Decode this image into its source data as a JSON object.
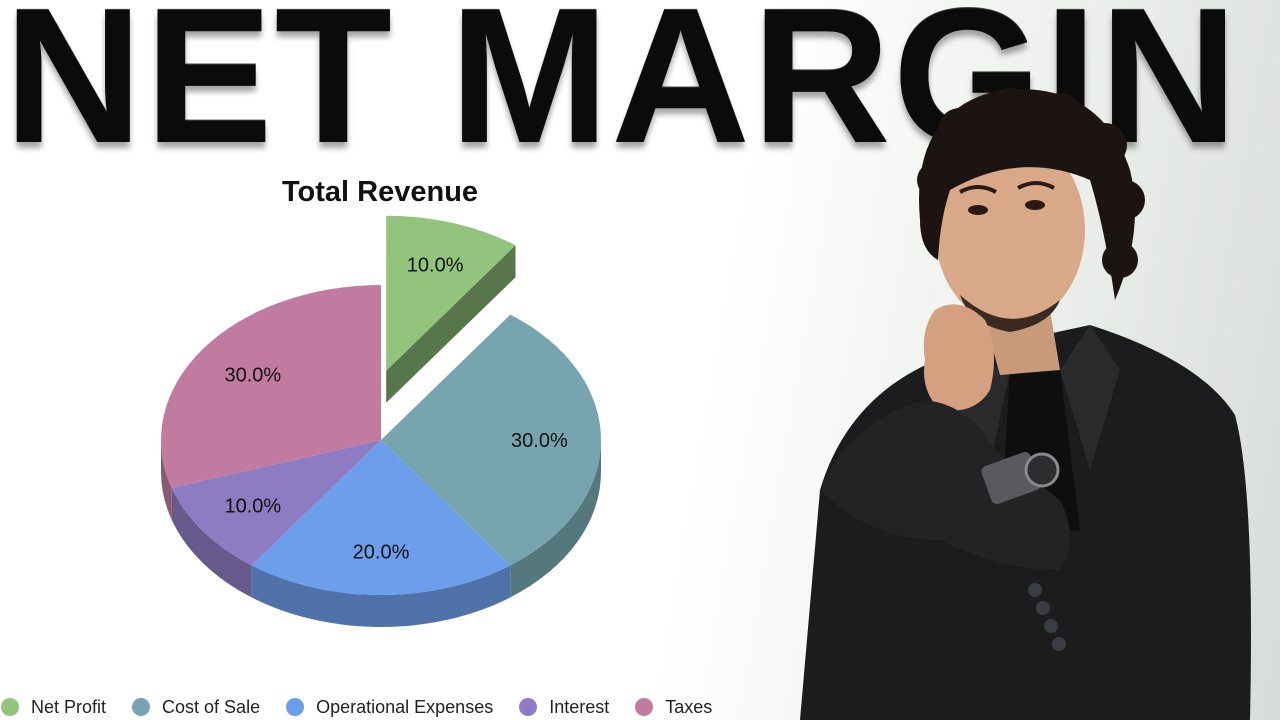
{
  "headline": "NET MARGIN",
  "chart_data": {
    "type": "pie",
    "title": "Total Revenue",
    "categories": [
      "Net Profit",
      "Cost of Sale",
      "Operational Expenses",
      "Interest",
      "Taxes"
    ],
    "values": [
      10.0,
      30.0,
      20.0,
      10.0,
      30.0
    ],
    "labels": [
      "10.0%",
      "30.0%",
      "20.0%",
      "10.0%",
      "30.0%"
    ],
    "colors": [
      "#93c47d",
      "#76a5af",
      "#6d9eeb",
      "#8e7cc3",
      "#c27ba0"
    ],
    "exploded": [
      "Net Profit"
    ],
    "legend_position": "bottom",
    "style": "3d"
  },
  "legend": [
    {
      "label": "Net Profit",
      "color": "#93c47d"
    },
    {
      "label": "Cost of Sale",
      "color": "#76a5af"
    },
    {
      "label": "Operational Expenses",
      "color": "#6d9eeb"
    },
    {
      "label": "Interest",
      "color": "#8e7cc3"
    },
    {
      "label": "Taxes",
      "color": "#c27ba0"
    }
  ]
}
